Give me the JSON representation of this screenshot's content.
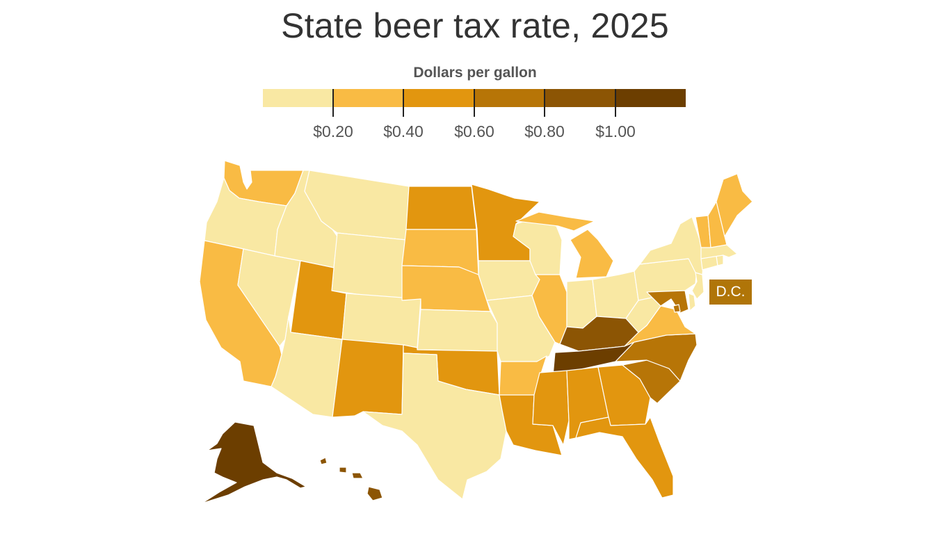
{
  "title": "State beer tax rate, 2025",
  "legend": {
    "title": "Dollars per gallon",
    "colors": [
      "#f9e8a3",
      "#f9bb44",
      "#e2960f",
      "#b77507",
      "#8c5504",
      "#6c3e00"
    ],
    "ticks": [
      "$0.20",
      "$0.40",
      "$0.60",
      "$0.80",
      "$1.00"
    ]
  },
  "dc_label": "D.C.",
  "chart_data": {
    "type": "choropleth",
    "title": "State beer tax rate, 2025",
    "legend_title": "Dollars per gallon",
    "bins": [
      {
        "range": "< $0.20",
        "color": "#f9e8a3"
      },
      {
        "range": "$0.20–$0.40",
        "color": "#f9bb44"
      },
      {
        "range": "$0.40–$0.60",
        "color": "#e2960f"
      },
      {
        "range": "$0.60–$0.80",
        "color": "#b77507"
      },
      {
        "range": "$0.80–$1.00",
        "color": "#8c5504"
      },
      {
        "range": "> $1.00",
        "color": "#6c3e00"
      }
    ],
    "states": {
      "WA": 1,
      "OR": 0,
      "CA": 1,
      "NV": 0,
      "ID": 0,
      "MT": 0,
      "WY": 0,
      "UT": 2,
      "AZ": 0,
      "CO": 0,
      "NM": 2,
      "ND": 2,
      "SD": 1,
      "NE": 1,
      "KS": 0,
      "OK": 2,
      "TX": 0,
      "MN": 2,
      "IA": 0,
      "MO": 0,
      "AR": 1,
      "LA": 2,
      "WI": 0,
      "IL": 1,
      "MI": 1,
      "IN": 0,
      "OH": 0,
      "KY": 4,
      "TN": 5,
      "MS": 2,
      "AL": 2,
      "GA": 2,
      "FL": 2,
      "SC": 3,
      "NC": 3,
      "VA": 1,
      "WV": 0,
      "MD": 3,
      "DE": 0,
      "DC": 3,
      "PA": 0,
      "NJ": 0,
      "NY": 0,
      "CT": 0,
      "RI": 0,
      "MA": 0,
      "VT": 1,
      "NH": 1,
      "ME": 1,
      "AK": 5,
      "HI": 4
    }
  }
}
